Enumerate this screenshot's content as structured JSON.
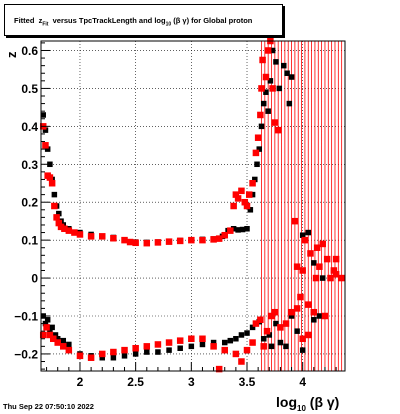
{
  "title": {
    "prefix": "Fitted",
    "var": "z",
    "var_sub": "Fit",
    "middle": "versus TpcTrackLength and log",
    "log_sub": "10",
    "suffix": "(β  γ) for Global proton"
  },
  "footer": {
    "date": "Thu Sep 22 07:50:10 2022"
  },
  "x_title": {
    "main": "log",
    "sub": "10",
    "rest": "(β γ)"
  },
  "y_title": "z",
  "colors": {
    "series_black": "#000000",
    "series_red": "#ff0000",
    "grid": "#000000"
  },
  "chart_data": {
    "type": "scatter",
    "xlim": [
      1.65,
      4.38
    ],
    "ylim": [
      -0.245,
      0.625
    ],
    "x_ticks": [
      2,
      2.5,
      3,
      3.5,
      4
    ],
    "x_tick_labels": [
      "2",
      "2.5",
      "3",
      "3.5",
      "4"
    ],
    "y_ticks": [
      -0.2,
      -0.1,
      0,
      0.1,
      0.2,
      0.3,
      0.4,
      0.5,
      0.6
    ],
    "y_tick_labels": [
      "−0.2",
      "−0.1",
      "0",
      "0.1",
      "0.2",
      "0.3",
      "0.4",
      "0.5",
      "0.6"
    ],
    "grid": true,
    "series": [
      {
        "color": "#000000",
        "marker": "square",
        "points": [
          [
            1.67,
            0.43
          ],
          [
            1.69,
            0.39
          ],
          [
            1.71,
            0.34
          ],
          [
            1.73,
            0.3
          ],
          [
            1.75,
            0.26
          ],
          [
            1.77,
            0.22
          ],
          [
            1.79,
            0.19
          ],
          [
            1.81,
            0.17
          ],
          [
            1.83,
            0.15
          ],
          [
            1.85,
            0.14
          ],
          [
            1.9,
            0.13
          ],
          [
            2.0,
            0.12
          ],
          [
            2.1,
            0.115
          ],
          [
            2.2,
            0.11
          ],
          [
            2.3,
            0.107
          ],
          [
            2.4,
            0.1
          ],
          [
            2.5,
            0.095
          ],
          [
            2.6,
            0.094
          ],
          [
            2.7,
            0.095
          ],
          [
            2.8,
            0.097
          ],
          [
            2.9,
            0.099
          ],
          [
            3.0,
            0.1
          ],
          [
            3.1,
            0.102
          ],
          [
            3.2,
            0.103
          ],
          [
            3.28,
            0.11
          ],
          [
            3.33,
            0.125
          ],
          [
            3.38,
            0.13
          ],
          [
            3.42,
            0.127
          ],
          [
            3.46,
            0.128
          ],
          [
            3.5,
            0.13
          ],
          [
            3.53,
            0.18
          ],
          [
            3.55,
            0.22
          ],
          [
            3.57,
            0.26
          ],
          [
            3.59,
            0.3
          ],
          [
            3.61,
            0.34
          ],
          [
            3.63,
            0.4
          ],
          [
            3.65,
            0.46
          ],
          [
            3.67,
            0.49
          ],
          [
            3.69,
            0.44
          ],
          [
            3.71,
            0.52
          ],
          [
            3.73,
            0.6
          ],
          [
            3.76,
            0.57
          ],
          [
            3.79,
            0.5
          ],
          [
            3.83,
            0.56
          ],
          [
            3.86,
            0.54
          ],
          [
            3.88,
            0.46
          ],
          [
            3.9,
            0.53
          ],
          [
            4.0,
            0.113
          ],
          [
            4.05,
            0.12
          ],
          [
            1.67,
            -0.1
          ],
          [
            1.69,
            -0.12
          ],
          [
            1.71,
            -0.11
          ],
          [
            1.73,
            -0.14
          ],
          [
            1.75,
            -0.13
          ],
          [
            1.78,
            -0.15
          ],
          [
            1.8,
            -0.16
          ],
          [
            1.85,
            -0.165
          ],
          [
            1.9,
            -0.175
          ],
          [
            2.0,
            -0.2
          ],
          [
            2.1,
            -0.205
          ],
          [
            2.2,
            -0.21
          ],
          [
            2.3,
            -0.21
          ],
          [
            2.4,
            -0.205
          ],
          [
            2.5,
            -0.2
          ],
          [
            2.6,
            -0.195
          ],
          [
            2.7,
            -0.195
          ],
          [
            2.8,
            -0.19
          ],
          [
            2.9,
            -0.185
          ],
          [
            3.0,
            -0.18
          ],
          [
            3.1,
            -0.175
          ],
          [
            3.2,
            -0.17
          ],
          [
            3.3,
            -0.17
          ],
          [
            3.35,
            -0.165
          ],
          [
            3.4,
            -0.16
          ],
          [
            3.45,
            -0.15
          ],
          [
            3.5,
            -0.145
          ],
          [
            3.55,
            -0.13
          ],
          [
            3.58,
            -0.12
          ],
          [
            3.61,
            -0.115
          ],
          [
            3.65,
            -0.16
          ],
          [
            3.7,
            -0.15
          ],
          [
            3.72,
            -0.18
          ],
          [
            3.76,
            -0.12
          ],
          [
            3.8,
            -0.17
          ],
          [
            3.85,
            -0.18
          ],
          [
            3.9,
            -0.1
          ],
          [
            3.95,
            -0.14
          ],
          [
            4.0,
            -0.19
          ],
          [
            4.1,
            -0.11
          ],
          [
            4.15,
            -0.1
          ],
          [
            4.1,
            0.04
          ],
          [
            4.18,
            0.0
          ]
        ]
      },
      {
        "color": "#ff0000",
        "marker": "square",
        "points": [
          [
            1.67,
            0.4
          ],
          [
            1.69,
            0.35
          ],
          [
            1.71,
            0.27
          ],
          [
            1.73,
            0.265
          ],
          [
            1.75,
            0.25
          ],
          [
            1.77,
            0.19
          ],
          [
            1.79,
            0.16
          ],
          [
            1.81,
            0.145
          ],
          [
            1.83,
            0.135
          ],
          [
            1.86,
            0.13
          ],
          [
            1.9,
            0.125
          ],
          [
            1.95,
            0.12
          ],
          [
            2.0,
            0.115
          ],
          [
            2.1,
            0.11
          ],
          [
            2.2,
            0.11
          ],
          [
            2.3,
            0.105
          ],
          [
            2.4,
            0.1
          ],
          [
            2.45,
            0.095
          ],
          [
            2.5,
            0.093
          ],
          [
            2.6,
            0.092
          ],
          [
            2.7,
            0.094
          ],
          [
            2.8,
            0.096
          ],
          [
            2.9,
            0.098
          ],
          [
            3.0,
            0.1
          ],
          [
            3.1,
            0.1
          ],
          [
            3.2,
            0.102
          ],
          [
            3.25,
            0.104
          ],
          [
            3.3,
            0.113
          ],
          [
            3.35,
            0.125
          ],
          [
            3.38,
            0.19
          ],
          [
            3.4,
            0.22
          ],
          [
            3.42,
            0.21
          ],
          [
            3.45,
            0.23
          ],
          [
            3.48,
            0.2
          ],
          [
            3.5,
            0.19
          ],
          [
            3.52,
            0.22
          ],
          [
            3.55,
            0.25
          ],
          [
            3.58,
            0.33
          ],
          [
            3.6,
            0.37
          ],
          [
            3.62,
            0.43
          ],
          [
            3.63,
            0.5
          ],
          [
            3.64,
            0.575
          ],
          [
            3.67,
            0.53
          ],
          [
            3.69,
            0.6
          ],
          [
            3.71,
            0.625
          ],
          [
            3.73,
            0.5
          ],
          [
            3.75,
            0.41
          ],
          [
            3.78,
            0.39
          ],
          [
            3.93,
            0.15
          ],
          [
            4.02,
            0.1
          ],
          [
            4.07,
            0.065
          ],
          [
            4.13,
            0.08
          ],
          [
            4.18,
            0.09
          ],
          [
            4.3,
            0.05
          ],
          [
            3.95,
            0.03
          ],
          [
            4.0,
            0.02
          ],
          [
            4.12,
            0.0
          ],
          [
            4.25,
            0.0
          ],
          [
            4.35,
            0.0
          ],
          [
            3.98,
            -0.05
          ],
          [
            4.05,
            -0.07
          ],
          [
            4.2,
            -0.1
          ],
          [
            1.67,
            -0.15
          ],
          [
            1.7,
            -0.13
          ],
          [
            1.73,
            -0.15
          ],
          [
            1.76,
            -0.16
          ],
          [
            1.8,
            -0.17
          ],
          [
            1.85,
            -0.18
          ],
          [
            1.9,
            -0.19
          ],
          [
            2.0,
            -0.205
          ],
          [
            2.1,
            -0.21
          ],
          [
            2.2,
            -0.2
          ],
          [
            2.3,
            -0.195
          ],
          [
            2.4,
            -0.19
          ],
          [
            2.5,
            -0.185
          ],
          [
            2.6,
            -0.18
          ],
          [
            2.7,
            -0.175
          ],
          [
            2.8,
            -0.17
          ],
          [
            2.9,
            -0.165
          ],
          [
            3.0,
            -0.16
          ],
          [
            3.1,
            -0.16
          ],
          [
            3.2,
            -0.18
          ],
          [
            3.3,
            -0.19
          ],
          [
            3.25,
            -0.24
          ],
          [
            3.4,
            -0.2
          ],
          [
            3.45,
            -0.22
          ],
          [
            3.5,
            -0.19
          ],
          [
            3.55,
            -0.17
          ],
          [
            3.58,
            -0.12
          ],
          [
            3.62,
            -0.11
          ],
          [
            3.65,
            -0.18
          ],
          [
            3.68,
            -0.14
          ],
          [
            3.72,
            -0.1
          ],
          [
            3.75,
            -0.09
          ],
          [
            3.8,
            -0.13
          ],
          [
            3.85,
            -0.12
          ],
          [
            3.9,
            -0.09
          ],
          [
            3.95,
            -0.08
          ],
          [
            4.0,
            -0.16
          ],
          [
            4.05,
            -0.15
          ],
          [
            4.1,
            -0.09
          ],
          [
            4.15,
            0.03
          ],
          [
            4.3,
            0.01
          ],
          [
            4.22,
            0.05
          ],
          [
            4.28,
            0.02
          ]
        ]
      }
    ],
    "error_bar_region": {
      "color": "#ff0000",
      "x_values": [
        3.63,
        3.66,
        3.69,
        3.72,
        3.75,
        3.78,
        3.81,
        3.84,
        3.87,
        3.9,
        3.93,
        3.96,
        3.99,
        4.02,
        4.05,
        4.08,
        4.11,
        4.14,
        4.17,
        4.2,
        4.23,
        4.26,
        4.29,
        4.32,
        4.35
      ],
      "y_range": [
        -0.245,
        0.625
      ]
    }
  }
}
